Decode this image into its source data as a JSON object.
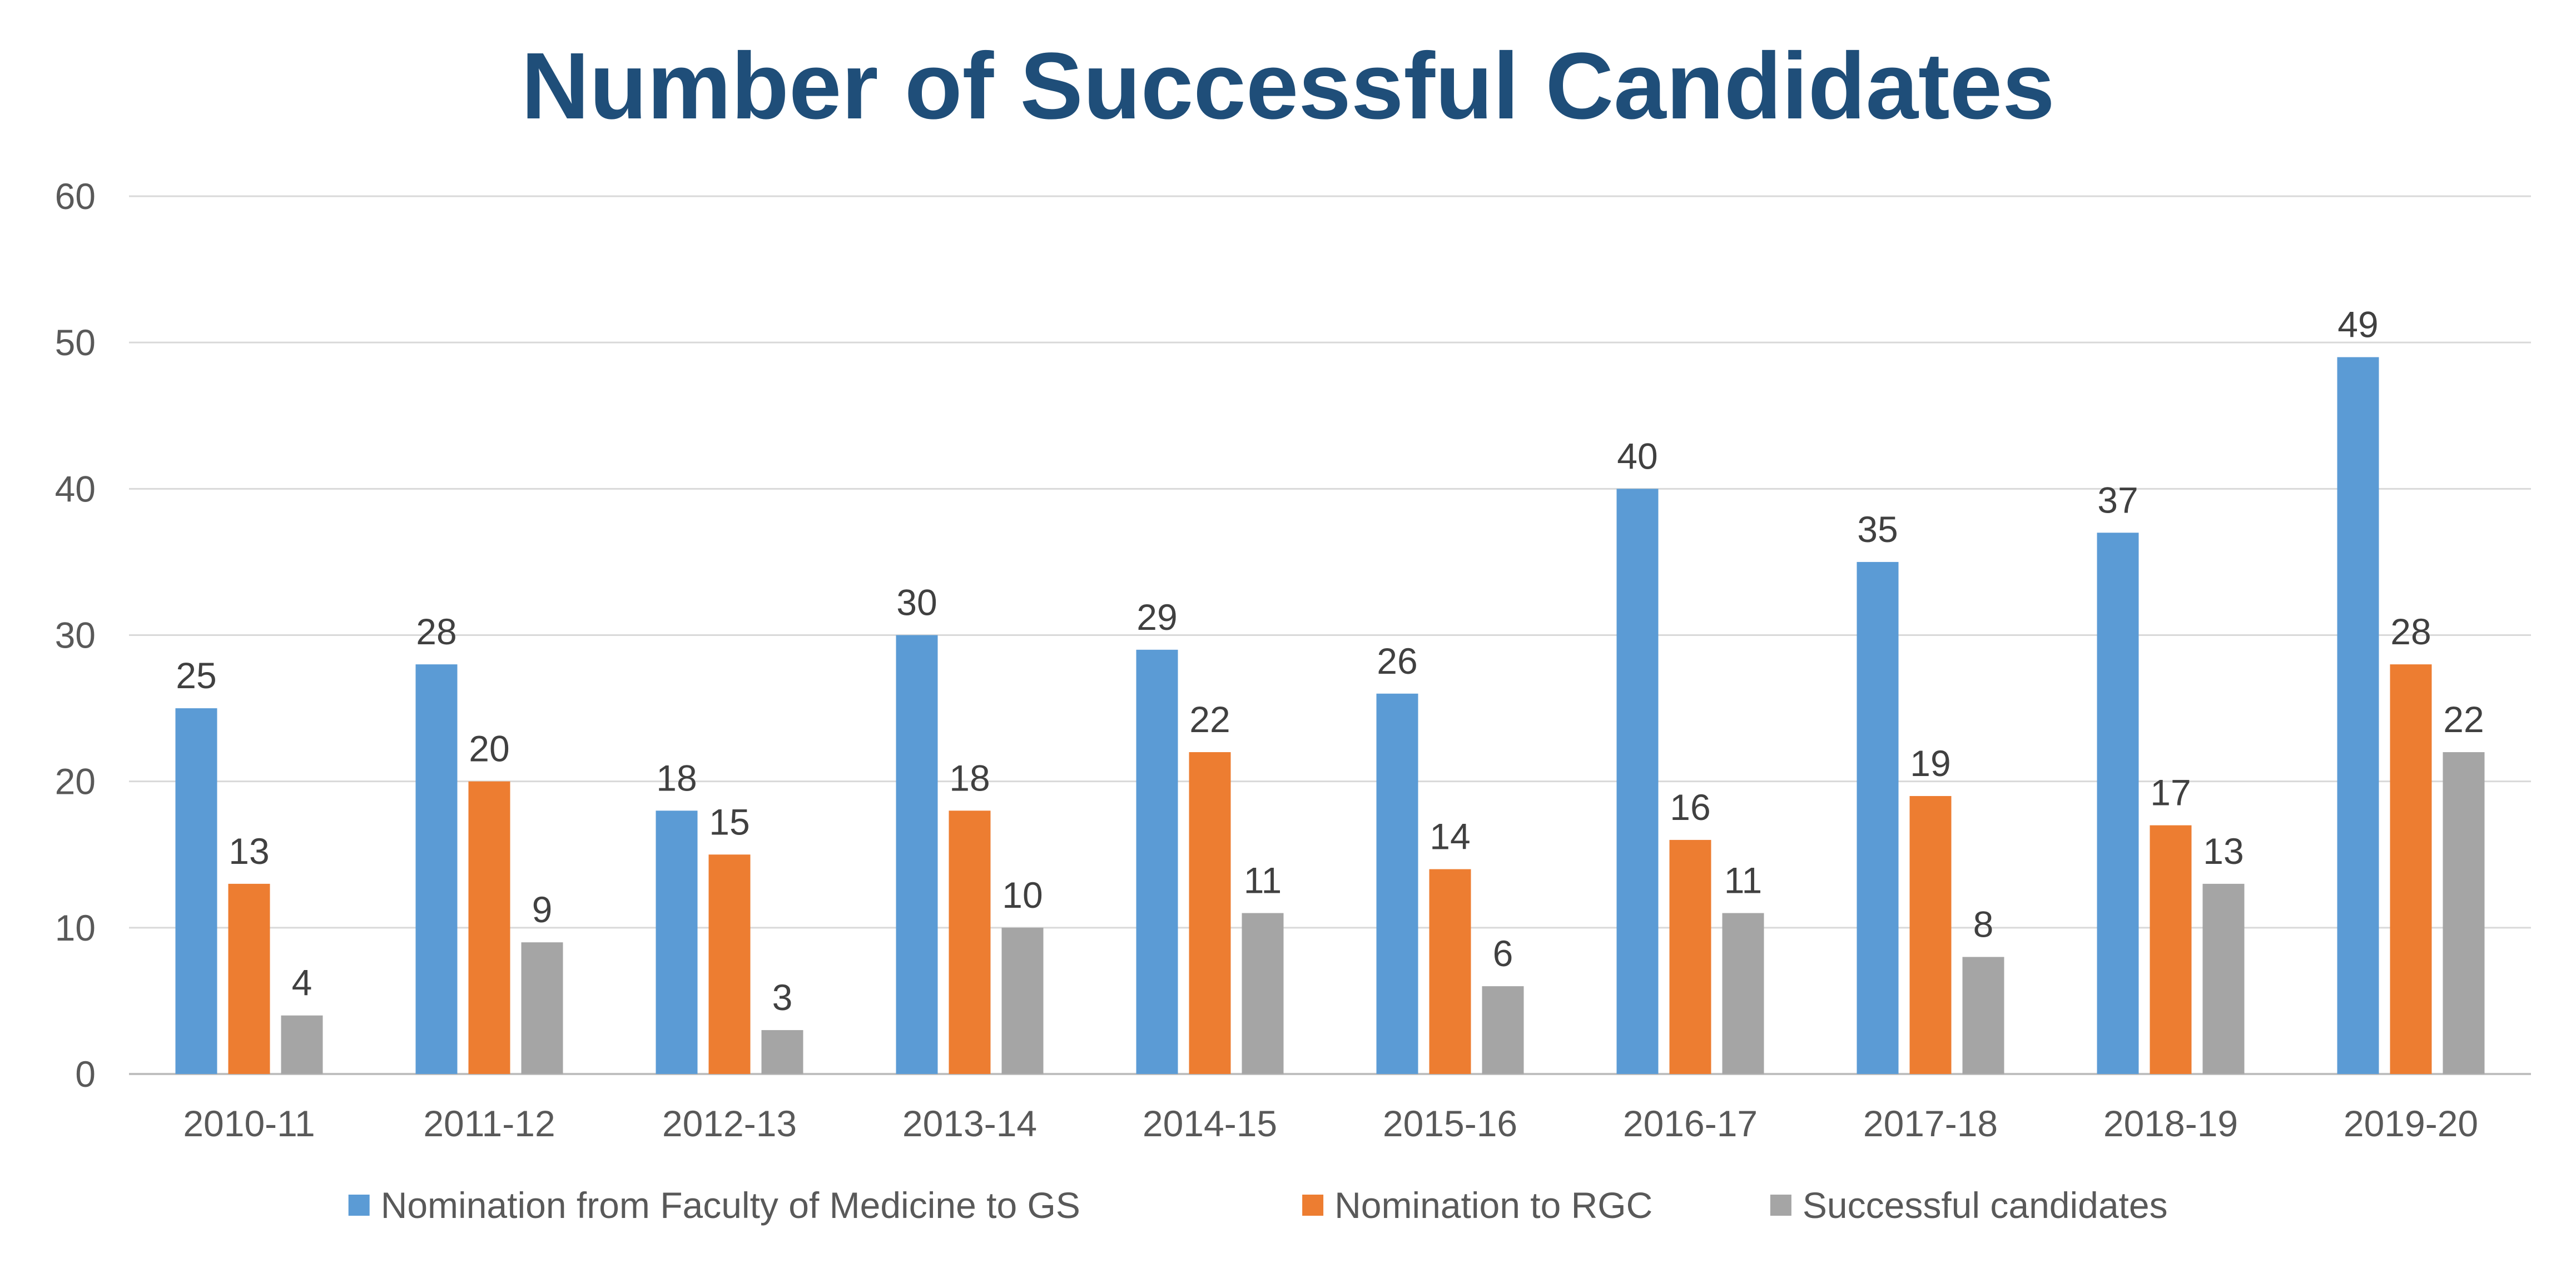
{
  "chart_data": {
    "type": "bar",
    "title": "Number of Successful Candidates",
    "categories": [
      "2010-11",
      "2011-12",
      "2012-13",
      "2013-14",
      "2014-15",
      "2015-16",
      "2016-17",
      "2017-18",
      "2018-19",
      "2019-20"
    ],
    "series": [
      {
        "name": "Nomination from Faculty of Medicine to GS",
        "color": "#5B9BD5",
        "values": [
          25,
          28,
          18,
          30,
          29,
          26,
          40,
          35,
          37,
          49
        ]
      },
      {
        "name": "Nomination to RGC",
        "color": "#ED7D31",
        "values": [
          13,
          20,
          15,
          18,
          22,
          14,
          16,
          19,
          17,
          28
        ]
      },
      {
        "name": "Successful candidates",
        "color": "#A5A5A5",
        "values": [
          4,
          9,
          3,
          10,
          11,
          6,
          11,
          8,
          13,
          22
        ]
      }
    ],
    "ylim": [
      0,
      60
    ],
    "yticks": [
      0,
      10,
      20,
      30,
      40,
      50,
      60
    ],
    "grid": true,
    "data_labels": true,
    "legend": "bottom"
  }
}
